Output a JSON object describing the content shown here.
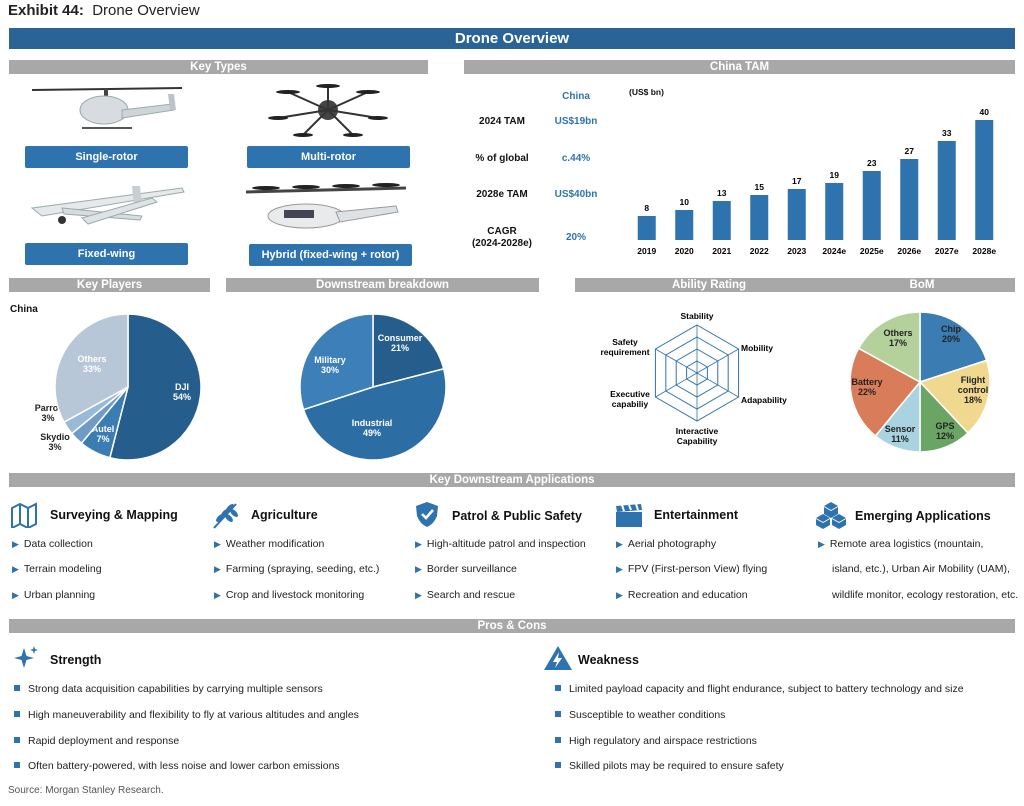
{
  "exhibit": {
    "number": "Exhibit 44:",
    "title": "Drone Overview"
  },
  "banner": "Drone Overview",
  "sections": {
    "key_types": "Key Types",
    "china_tam": "China TAM",
    "key_players": "Key Players",
    "downstream": "Downstream breakdown",
    "ability": "Ability Rating",
    "bom": "BoM",
    "applications": "Key Downstream Applications",
    "pros_cons": "Pros & Cons"
  },
  "key_types": [
    "Single-rotor",
    "Multi-rotor",
    "Fixed-wing",
    "Hybrid (fixed-wing + rotor)"
  ],
  "tam_table": {
    "header": "China",
    "rows": [
      {
        "label": "2024 TAM",
        "value": "US$19bn"
      },
      {
        "label": "% of global",
        "value": "c.44%"
      },
      {
        "label": "2028e TAM",
        "value": "US$40bn"
      },
      {
        "label": "CAGR",
        "label2": "(2024-2028e)",
        "value": "20%"
      }
    ]
  },
  "chart_data": [
    {
      "type": "bar",
      "title": "",
      "unit_label": "(US$ bn)",
      "categories": [
        "2019",
        "2020",
        "2021",
        "2022",
        "2023",
        "2024e",
        "2025e",
        "2026e",
        "2027e",
        "2028e"
      ],
      "values": [
        8,
        10,
        13,
        15,
        17,
        19,
        23,
        27,
        33,
        40
      ],
      "ylim": [
        0,
        40
      ],
      "color": "#2f73ae",
      "grid": false
    },
    {
      "type": "pie",
      "title": "China",
      "slices": [
        {
          "label": "DJI",
          "pct": "54%",
          "value": 54,
          "color": "#255e8c"
        },
        {
          "label": "Autel",
          "pct": "7%",
          "value": 7,
          "color": "#3b7cb3"
        },
        {
          "label": "Skydio",
          "pct": "3%",
          "value": 3,
          "color": "#6f9bc6"
        },
        {
          "label": "Parrot",
          "pct": "3%",
          "value": 3,
          "color": "#9ab8d8"
        },
        {
          "label": "Others",
          "pct": "33%",
          "value": 33,
          "color": "#b8c7d8"
        }
      ]
    },
    {
      "type": "pie",
      "title": "",
      "slices": [
        {
          "label": "Consumer",
          "pct": "21%",
          "value": 21,
          "color": "#255e8c"
        },
        {
          "label": "Industrial",
          "pct": "49%",
          "value": 49,
          "color": "#2c6da4"
        },
        {
          "label": "Military",
          "pct": "30%",
          "value": 30,
          "color": "#3c7fb9"
        }
      ]
    },
    {
      "type": "radar",
      "axes": [
        "Stability",
        "Mobility",
        "Adapability",
        "Interactive Capability",
        "Executive capabiliy",
        "Safety requirement"
      ]
    },
    {
      "type": "pie",
      "title": "",
      "slices": [
        {
          "label": "Chip",
          "pct": "20%",
          "value": 20,
          "color": "#3b7cb3"
        },
        {
          "label": "Flight control",
          "pct": "18%",
          "value": 18,
          "color": "#f0d88f"
        },
        {
          "label": "GPS",
          "pct": "12%",
          "value": 12,
          "color": "#6aa565"
        },
        {
          "label": "Sensor",
          "pct": "11%",
          "value": 11,
          "color": "#a9d3e0"
        },
        {
          "label": "Battery",
          "pct": "22%",
          "value": 22,
          "color": "#d97c5a"
        },
        {
          "label": "Others",
          "pct": "17%",
          "value": 17,
          "color": "#b5d19b"
        }
      ]
    }
  ],
  "applications": [
    {
      "title": "Surveying & Mapping",
      "icon": "map-icon",
      "items": [
        "Data collection",
        "Terrain modeling",
        "Urban planning"
      ]
    },
    {
      "title": "Agriculture",
      "icon": "wheat-icon",
      "items": [
        "Weather modification",
        "Farming (spraying, seeding, etc.)",
        "Crop and livestock monitoring"
      ]
    },
    {
      "title": "Patrol & Public Safety",
      "icon": "shield-icon",
      "items": [
        "High-altitude patrol and inspection",
        "Border surveillance",
        "Search and rescue"
      ]
    },
    {
      "title": "Entertainment",
      "icon": "clapper-icon",
      "items": [
        "Aerial photography",
        "FPV (First-person View) flying",
        "Recreation and education"
      ]
    },
    {
      "title": "Emerging Applications",
      "icon": "cubes-icon",
      "items": [
        "Remote area logistics (mountain,",
        "island, etc.), Urban Air Mobility (UAM),",
        "wildlife monitor, ecology restoration, etc."
      ]
    }
  ],
  "strength": {
    "title": "Strength",
    "items": [
      "Strong data acquisition capabilities by carrying multiple sensors",
      "High maneuverability and flexibility to fly at various altitudes and angles",
      "Rapid deployment and response",
      "Often battery-powered, with less noise and lower carbon emissions"
    ]
  },
  "weakness": {
    "title": "Weakness",
    "items": [
      "Limited payload capacity and flight endurance, subject to battery technology and size",
      "Susceptible to weather conditions",
      "High regulatory and airspace restrictions",
      "Skilled pilots may be required to ensure safety"
    ]
  },
  "source": "Source: Morgan Stanley Research."
}
